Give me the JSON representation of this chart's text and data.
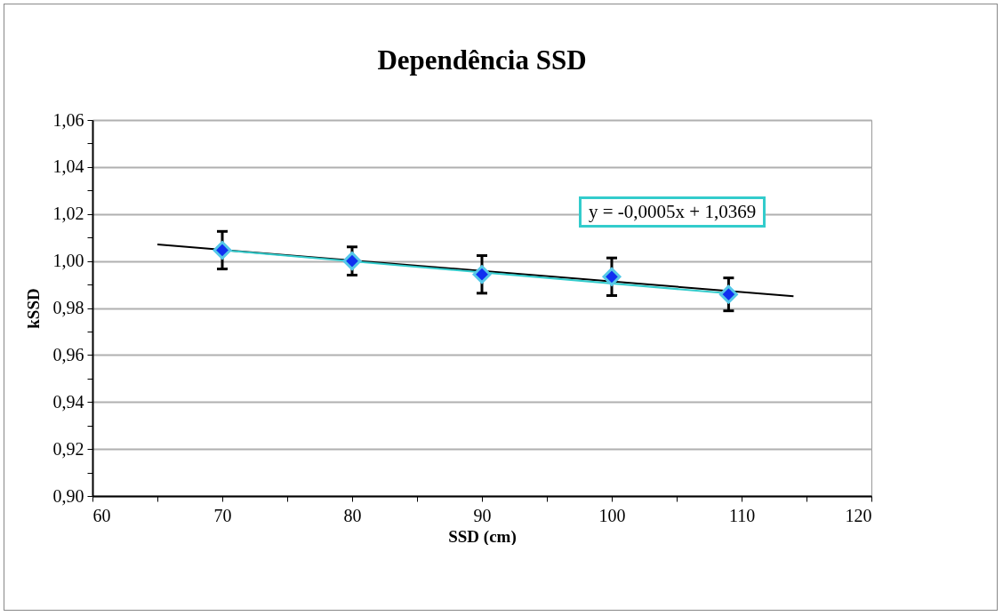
{
  "chart_data": {
    "type": "scatter",
    "title": "Dependência SSD",
    "xlabel": "SSD (cm)",
    "ylabel": "kSSD",
    "series": [
      {
        "type": "line",
        "color": "#000000",
        "x": [
          65,
          114
        ],
        "values": [
          1.007,
          0.985
        ]
      },
      {
        "type": "line",
        "color": "#33cccc",
        "x": [
          70,
          109
        ],
        "values": [
          1.0046,
          0.9862
        ]
      },
      {
        "type": "scatter",
        "marker": "diamond",
        "color": "#1030f0",
        "x": [
          70,
          80,
          90,
          100,
          109
        ],
        "values": [
          1.0046,
          1.0,
          0.9943,
          0.9933,
          0.9858
        ],
        "errors": [
          0.008,
          0.006,
          0.008,
          0.008,
          0.007
        ]
      }
    ],
    "xlim": [
      60,
      120
    ],
    "xticks": [
      60,
      {
        "value": 65,
        "label": null
      },
      70,
      {
        "value": 75,
        "label": null
      },
      80,
      {
        "value": 85,
        "label": null
      },
      90,
      {
        "value": 95,
        "label": null
      },
      100,
      {
        "value": 105,
        "label": null
      },
      110,
      {
        "value": 115,
        "label": null
      },
      120
    ],
    "ylim": [
      0.9,
      1.06
    ],
    "yticks": [
      {
        "value": 0.9,
        "label": "0,90"
      },
      {
        "value": 0.91,
        "label": null
      },
      {
        "value": 0.92,
        "label": "0,92"
      },
      {
        "value": 0.93,
        "label": null
      },
      {
        "value": 0.94,
        "label": "0,94"
      },
      {
        "value": 0.95,
        "label": null
      },
      {
        "value": 0.96,
        "label": "0,96"
      },
      {
        "value": 0.97,
        "label": null
      },
      {
        "value": 0.98,
        "label": "0,98"
      },
      {
        "value": 0.99,
        "label": null
      },
      {
        "value": 1.0,
        "label": "1,00"
      },
      {
        "value": 1.01,
        "label": null
      },
      {
        "value": 1.02,
        "label": "1,02"
      },
      {
        "value": 1.03,
        "label": null
      },
      {
        "value": 1.04,
        "label": "1,04"
      },
      {
        "value": 1.05,
        "label": null
      },
      {
        "value": 1.06,
        "label": "1,06"
      }
    ],
    "grid": "y",
    "annotations": [
      "y = -0,0005x + 1,0369"
    ]
  }
}
